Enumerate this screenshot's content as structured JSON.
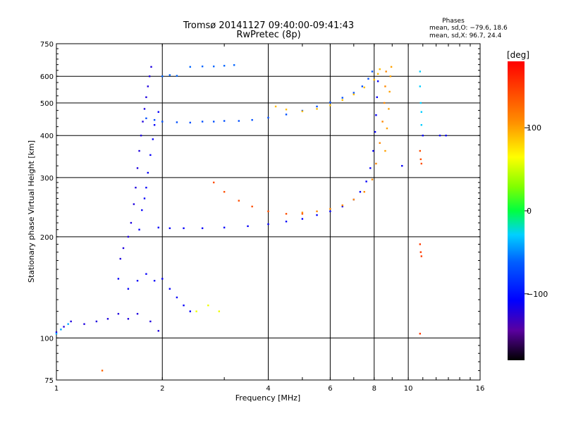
{
  "chart_data": {
    "type": "scatter",
    "title": "Tromsø 20141127 09:40:00-09:41:43",
    "subtitle": "RwPretec (8p)",
    "xlabel": "Frequency [MHz]",
    "ylabel": "Stationary phase Virtual Height [km]",
    "x_scale": "log",
    "y_scale": "log",
    "xlim": [
      1,
      16
    ],
    "ylim": [
      75,
      750
    ],
    "x_ticks": [
      1,
      2,
      4,
      6,
      8,
      10,
      16
    ],
    "y_ticks": [
      75,
      100,
      200,
      300,
      400,
      500,
      600,
      750
    ],
    "grid": true,
    "phase_legend": {
      "title": "Phases",
      "line_o": "mean, sd,O: −79.6, 18.6",
      "line_x": "mean, sd,X:  96.7, 24.4"
    },
    "colorbar": {
      "label": "[deg]",
      "ticks": [
        "100",
        "0",
        "−100"
      ],
      "tick_values": [
        100,
        0,
        -100
      ],
      "range": [
        -180,
        180
      ]
    },
    "traces": [
      {
        "phase": -120,
        "points": [
          [
            1.0,
            104
          ],
          [
            1.05,
            108
          ],
          [
            1.1,
            112
          ],
          [
            1.2,
            110
          ],
          [
            1.3,
            112
          ],
          [
            1.4,
            114
          ],
          [
            1.5,
            118
          ],
          [
            1.6,
            114
          ],
          [
            1.7,
            118
          ],
          [
            1.85,
            112
          ],
          [
            1.95,
            105
          ]
        ]
      },
      {
        "phase": -40,
        "points": [
          [
            1.0,
            103
          ],
          [
            1.03,
            106
          ],
          [
            1.08,
            110
          ]
        ]
      },
      {
        "phase": -110,
        "points": [
          [
            1.5,
            150
          ],
          [
            1.6,
            140
          ],
          [
            1.7,
            148
          ],
          [
            1.8,
            155
          ],
          [
            1.9,
            148
          ],
          [
            2.0,
            150
          ],
          [
            2.1,
            140
          ],
          [
            2.2,
            132
          ],
          [
            2.3,
            125
          ],
          [
            2.4,
            120
          ]
        ]
      },
      {
        "phase": 60,
        "points": [
          [
            2.5,
            120
          ],
          [
            2.7,
            125
          ],
          [
            2.9,
            120
          ]
        ]
      },
      {
        "phase": -120,
        "points": [
          [
            1.52,
            172
          ],
          [
            1.55,
            185
          ],
          [
            1.6,
            200
          ],
          [
            1.63,
            220
          ],
          [
            1.66,
            250
          ],
          [
            1.68,
            280
          ],
          [
            1.7,
            320
          ],
          [
            1.72,
            360
          ],
          [
            1.74,
            400
          ],
          [
            1.76,
            440
          ],
          [
            1.78,
            480
          ],
          [
            1.8,
            520
          ],
          [
            1.82,
            560
          ],
          [
            1.84,
            600
          ],
          [
            1.86,
            640
          ]
        ]
      },
      {
        "phase": -110,
        "points": [
          [
            1.72,
            210
          ],
          [
            1.75,
            240
          ],
          [
            1.78,
            260
          ],
          [
            1.8,
            280
          ],
          [
            1.82,
            310
          ],
          [
            1.85,
            350
          ],
          [
            1.88,
            390
          ],
          [
            1.9,
            430
          ],
          [
            1.95,
            470
          ]
        ]
      },
      {
        "phase": -70,
        "points": [
          [
            1.8,
            450
          ],
          [
            1.9,
            445
          ],
          [
            2.0,
            440
          ],
          [
            2.2,
            438
          ],
          [
            2.4,
            437
          ],
          [
            2.6,
            440
          ],
          [
            2.8,
            440
          ],
          [
            3.0,
            442
          ],
          [
            3.3,
            442
          ],
          [
            3.6,
            445
          ],
          [
            4.0,
            452
          ],
          [
            4.5,
            462
          ],
          [
            5.0,
            474
          ],
          [
            5.5,
            488
          ],
          [
            6.0,
            502
          ],
          [
            6.5,
            518
          ],
          [
            7.0,
            536
          ],
          [
            7.4,
            560
          ],
          [
            7.7,
            590
          ],
          [
            7.9,
            620
          ]
        ]
      },
      {
        "phase": 90,
        "points": [
          [
            4.2,
            488
          ],
          [
            4.5,
            478
          ],
          [
            5.0,
            472
          ],
          [
            5.5,
            480
          ],
          [
            6.0,
            492
          ],
          [
            6.5,
            510
          ],
          [
            7.0,
            530
          ],
          [
            7.5,
            556
          ],
          [
            8.0,
            586
          ],
          [
            8.2,
            610
          ],
          [
            8.3,
            630
          ]
        ]
      },
      {
        "phase": -60,
        "points": [
          [
            2.0,
            600
          ],
          [
            2.1,
            605
          ],
          [
            2.2,
            602
          ],
          [
            2.4,
            640
          ],
          [
            2.6,
            642
          ],
          [
            2.8,
            642
          ],
          [
            3.0,
            645
          ],
          [
            3.2,
            648
          ]
        ]
      },
      {
        "phase": -110,
        "points": [
          [
            1.95,
            213
          ],
          [
            2.1,
            212
          ],
          [
            2.3,
            212
          ],
          [
            2.6,
            212
          ],
          [
            3.0,
            213
          ],
          [
            3.5,
            215
          ],
          [
            4.0,
            218
          ],
          [
            4.5,
            222
          ],
          [
            5.0,
            226
          ],
          [
            5.5,
            232
          ],
          [
            6.0,
            238
          ],
          [
            6.5,
            246
          ],
          [
            7.0,
            258
          ],
          [
            7.3,
            272
          ],
          [
            7.6,
            292
          ],
          [
            7.8,
            320
          ],
          [
            7.95,
            360
          ],
          [
            8.05,
            410
          ],
          [
            8.1,
            460
          ],
          [
            8.15,
            520
          ],
          [
            8.2,
            580
          ]
        ]
      },
      {
        "phase": 140,
        "points": [
          [
            2.8,
            290
          ],
          [
            3.0,
            272
          ],
          [
            3.3,
            256
          ],
          [
            3.6,
            246
          ],
          [
            4.0,
            238
          ],
          [
            4.5,
            234
          ],
          [
            5.0,
            234
          ]
        ]
      },
      {
        "phase": 110,
        "points": [
          [
            5.0,
            236
          ],
          [
            5.5,
            238
          ],
          [
            6.0,
            242
          ],
          [
            6.5,
            248
          ],
          [
            7.0,
            258
          ],
          [
            7.5,
            272
          ],
          [
            7.9,
            296
          ],
          [
            8.1,
            330
          ],
          [
            8.3,
            380
          ],
          [
            8.45,
            440
          ],
          [
            8.55,
            500
          ],
          [
            8.6,
            560
          ],
          [
            8.65,
            620
          ]
        ]
      },
      {
        "phase": 100,
        "points": [
          [
            8.6,
            360
          ],
          [
            8.7,
            420
          ],
          [
            8.8,
            480
          ],
          [
            8.85,
            540
          ],
          [
            8.9,
            600
          ],
          [
            8.95,
            640
          ]
        ]
      },
      {
        "phase": -30,
        "points": [
          [
            10.8,
            620
          ],
          [
            10.8,
            560
          ],
          [
            10.85,
            500
          ],
          [
            10.9,
            470
          ],
          [
            10.9,
            430
          ]
        ]
      },
      {
        "phase": 140,
        "points": [
          [
            10.8,
            360
          ],
          [
            10.85,
            340
          ],
          [
            10.9,
            330
          ]
        ]
      },
      {
        "phase": 150,
        "points": [
          [
            10.8,
            190
          ],
          [
            10.85,
            180
          ],
          [
            10.9,
            175
          ],
          [
            10.8,
            103
          ]
        ]
      },
      {
        "phase": -110,
        "points": [
          [
            11.0,
            400
          ],
          [
            12.3,
            400
          ],
          [
            12.8,
            400
          ],
          [
            9.6,
            325
          ]
        ]
      },
      {
        "phase": 130,
        "points": [
          [
            1.35,
            80
          ]
        ]
      }
    ]
  }
}
